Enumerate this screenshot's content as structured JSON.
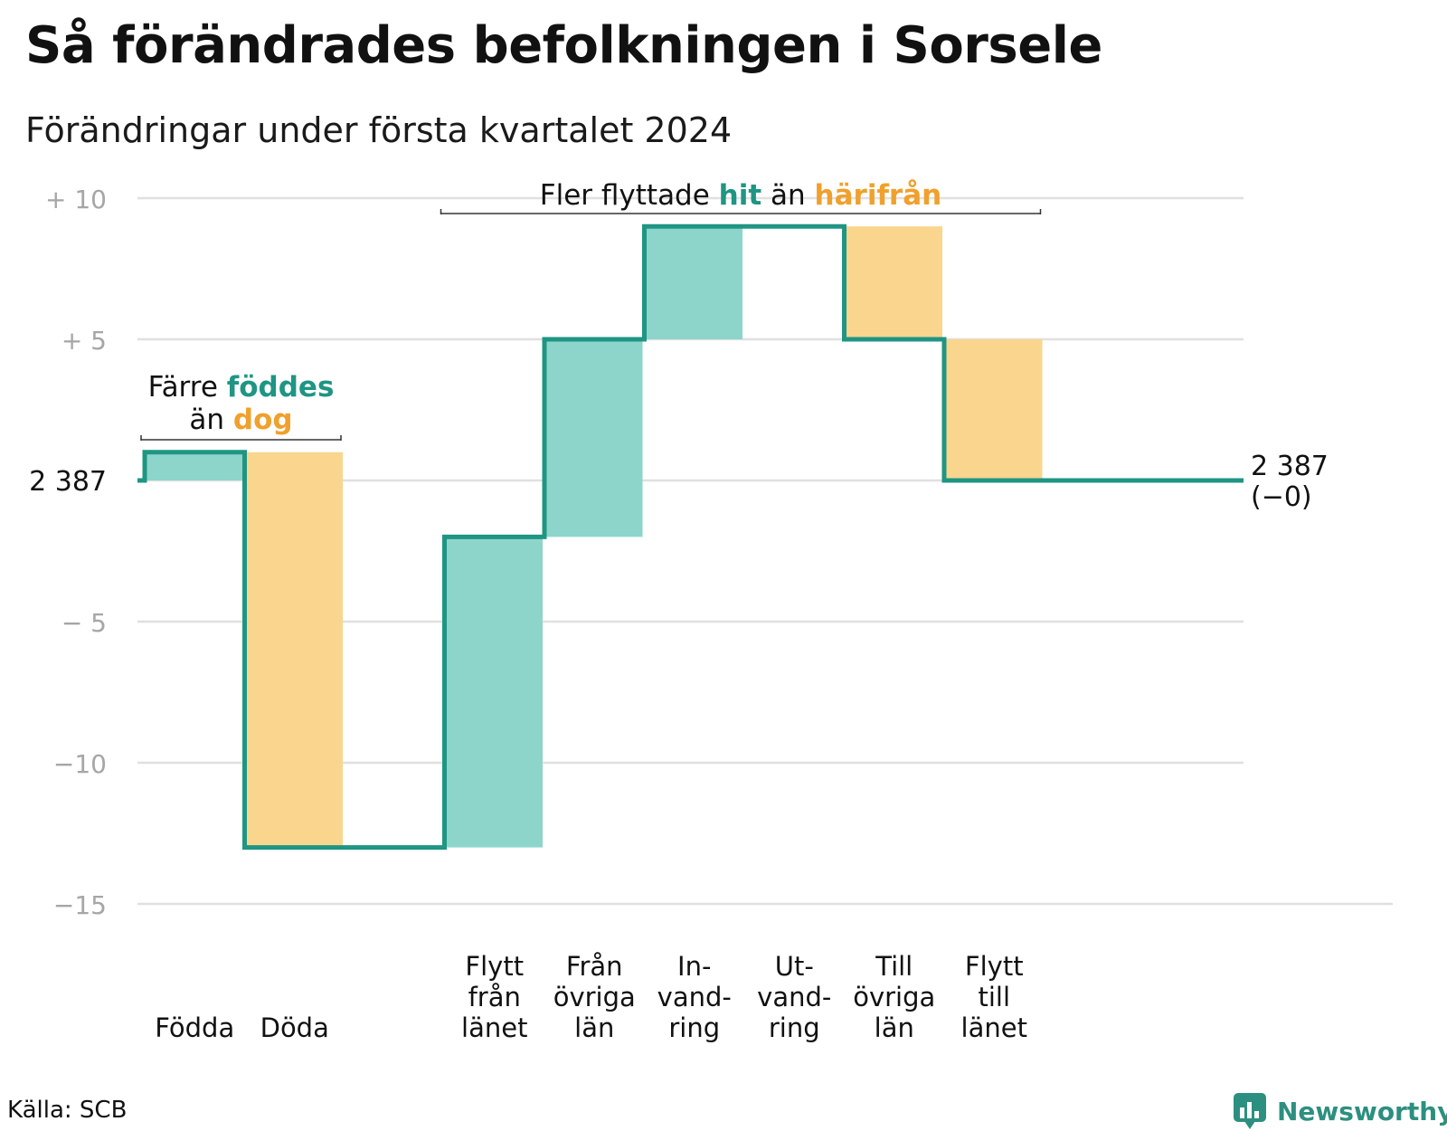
{
  "title": "Så förändrades befolkningen i Sorsele",
  "subtitle": "Förändringar under första kvartalet 2024",
  "source": "Källa: SCB",
  "brand": {
    "name": "Newsworthy",
    "icon": "newsworthy-logo-icon"
  },
  "colors": {
    "line": "#1f9583",
    "positive": "#8dd5cb",
    "negative": "#fad58e",
    "positive_text": "#1f9583",
    "negative_text": "#f0a02c",
    "grid": "#e0e0e0",
    "tick": "#a6a6a6"
  },
  "chart_data": {
    "type": "waterfall",
    "baseline": 2387,
    "baseline_label": "2 387",
    "ylim": [
      -15,
      10
    ],
    "y_ticks": [
      {
        "value": 10,
        "label": "+ 10"
      },
      {
        "value": 5,
        "label": "+ 5"
      },
      {
        "value": 0,
        "label": "2 387"
      },
      {
        "value": -5,
        "label": "− 5"
      },
      {
        "value": -10,
        "label": "−10"
      },
      {
        "value": -15,
        "label": "−15"
      }
    ],
    "grid": true,
    "categories": [
      {
        "label": [
          "Födda"
        ],
        "value": 1,
        "kind": "in"
      },
      {
        "label": [
          "Döda"
        ],
        "value": -14,
        "kind": "out"
      },
      {
        "label": [
          ""
        ],
        "value": 0,
        "kind": "gap"
      },
      {
        "label": [
          "Flytt",
          "från",
          "länet"
        ],
        "value": 11,
        "kind": "in"
      },
      {
        "label": [
          "Från",
          "övriga",
          "län"
        ],
        "value": 7,
        "kind": "in"
      },
      {
        "label": [
          "In-",
          "vand-",
          "ring"
        ],
        "value": 4,
        "kind": "in"
      },
      {
        "label": [
          "Ut-",
          "vand-",
          "ring"
        ],
        "value": 0,
        "kind": "out"
      },
      {
        "label": [
          "Till",
          "övriga",
          "län"
        ],
        "value": -4,
        "kind": "out"
      },
      {
        "label": [
          "Flytt",
          "till",
          "länet"
        ],
        "value": -5,
        "kind": "out"
      }
    ],
    "end_label": [
      "2 387",
      "(−0)"
    ],
    "annotations": [
      {
        "lines": [
          [
            {
              "text": "Färre ",
              "style": "plain"
            },
            {
              "text": "föddes",
              "style": "positive"
            }
          ],
          [
            {
              "text": "än ",
              "style": "plain"
            },
            {
              "text": "dog",
              "style": "negative"
            }
          ]
        ],
        "span": [
          0,
          1
        ]
      },
      {
        "lines": [
          [
            {
              "text": "Fler flyttade ",
              "style": "plain"
            },
            {
              "text": "hit",
              "style": "positive"
            },
            {
              "text": " än ",
              "style": "plain"
            },
            {
              "text": "härifrån",
              "style": "negative"
            }
          ]
        ],
        "span": [
          3,
          8
        ]
      }
    ]
  }
}
